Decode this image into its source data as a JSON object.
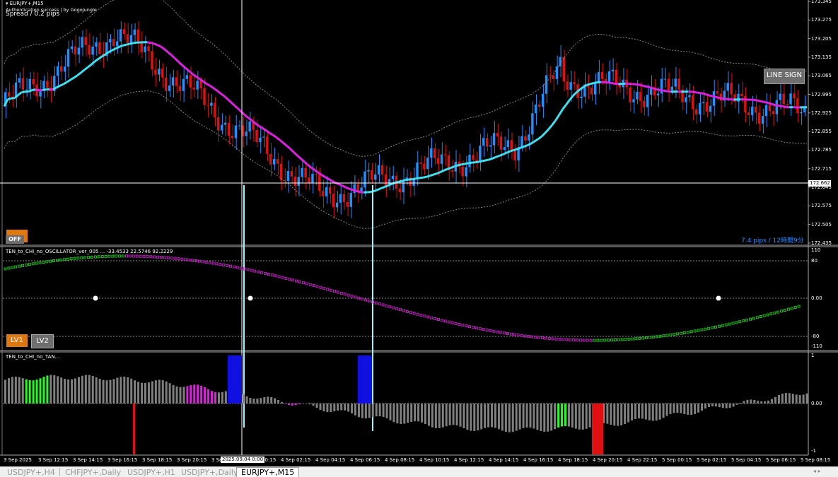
{
  "window": {
    "symbol_title": "EURJPY+,M15",
    "auth_text": "Authentication success | by GogoJungle",
    "spread_text": "Spread / 0.2 pips",
    "pips_info": "7.4 pips / 12時間9分"
  },
  "price_axis": {
    "labels": [
      "173.345",
      "173.275",
      "173.205",
      "173.135",
      "173.065",
      "172.995",
      "172.925",
      "172.855",
      "172.785",
      "172.715",
      "172.645",
      "172.575",
      "172.505",
      "172.435"
    ],
    "current_price": "172.662"
  },
  "buttons": {
    "line_sign": "LINE SIGN",
    "off": "OFF",
    "lv1": "LV1",
    "lv2": "LV2"
  },
  "oscillator": {
    "title": "TEN_to_CHI_no_OSCILLATOR_ver_005 ... -33.4533 22.5746 92.2229",
    "axis_labels": [
      "110",
      "80",
      "0.00",
      "-80",
      "-110"
    ],
    "markers": [
      "0",
      "0",
      "0"
    ]
  },
  "histogram": {
    "title": "TEN_to_CHI_no_TAN...",
    "axis_labels": [
      "1",
      "0.00",
      "-1"
    ]
  },
  "time_axis": {
    "labels": [
      "3 Sep 2025",
      "3 Sep 12:15",
      "3 Sep 14:15",
      "3 Sep 16:15",
      "3 Sep 18:15",
      "3 Sep 20:15",
      "3 Se",
      "4 Sep 00:15",
      "4 Sep 02:15",
      "4 Sep 04:15",
      "4 Sep 06:15",
      "4 Sep 08:15",
      "4 Sep 10:15",
      "4 Sep 12:15",
      "4 Sep 14:15",
      "4 Sep 16:15",
      "4 Sep 18:15",
      "4 Sep 20:15",
      "4 Sep 22:15",
      "5 Sep 00:15",
      "5 Sep 02:15",
      "5 Sep 04:15",
      "5 Sep 06:15",
      "5 Sep 08:15"
    ],
    "crosshair_time": "2025.09.04 0:00"
  },
  "tabs": [
    {
      "label": "USDJPY+,H4",
      "active": false
    },
    {
      "label": "CHFJPY+,Daily",
      "active": false
    },
    {
      "label": "USDJPY+,H1",
      "active": false
    },
    {
      "label": "USDJPY+,Daily",
      "active": false
    },
    {
      "label": "EURJPY+,M15",
      "active": true
    }
  ],
  "colors": {
    "bull": "#1e90ff",
    "bear": "#e01010",
    "ma_up": "#40e0f0",
    "ma_down": "#e020e0",
    "osc_up": "#20c020",
    "osc_down": "#c020c0",
    "hist_neutral": "#808080",
    "hist_green": "#20ff20",
    "hist_magenta": "#e020e0",
    "hist_blue": "#1010e0",
    "hist_red": "#e01010",
    "crosshair": "#ffffff",
    "signal_line": "#a0f0ff"
  }
}
